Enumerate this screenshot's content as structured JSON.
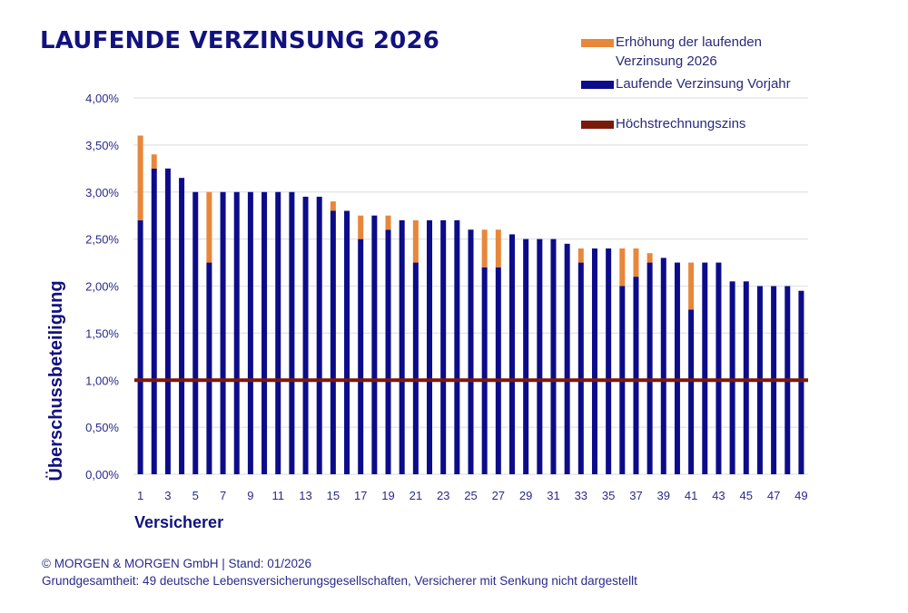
{
  "chart_data": {
    "type": "bar",
    "stacked": true,
    "title": "LAUFENDE VERZINSUNG 2026",
    "xlabel": "Versicherer",
    "ylabel": "Überschussbeteiligung",
    "ylim": [
      0,
      4.0
    ],
    "yticks": [
      "0,00%",
      "0,50%",
      "1,00%",
      "1,50%",
      "2,00%",
      "2,50%",
      "3,00%",
      "3,50%",
      "4,00%"
    ],
    "ytick_values": [
      0,
      0.5,
      1.0,
      1.5,
      2.0,
      2.5,
      3.0,
      3.5,
      4.0
    ],
    "xtick_labels": [
      "1",
      "3",
      "5",
      "7",
      "9",
      "11",
      "13",
      "15",
      "17",
      "19",
      "21",
      "23",
      "25",
      "27",
      "29",
      "31",
      "33",
      "35",
      "37",
      "39",
      "41",
      "43",
      "45",
      "47",
      "49"
    ],
    "grid": true,
    "legend_position": "top-right",
    "categories": [
      "1",
      "2",
      "3",
      "4",
      "5",
      "6",
      "7",
      "8",
      "9",
      "10",
      "11",
      "12",
      "13",
      "14",
      "15",
      "16",
      "17",
      "18",
      "19",
      "20",
      "21",
      "22",
      "23",
      "24",
      "25",
      "26",
      "27",
      "28",
      "29",
      "30",
      "31",
      "32",
      "33",
      "34",
      "35",
      "36",
      "37",
      "38",
      "39",
      "40",
      "41",
      "42",
      "43",
      "44",
      "45",
      "46",
      "47",
      "48",
      "49"
    ],
    "series": [
      {
        "name": "Laufende Verzinsung Vorjahr",
        "color": "#0c0c8a",
        "values": [
          2.7,
          3.25,
          3.25,
          3.15,
          3.0,
          2.25,
          3.0,
          3.0,
          3.0,
          3.0,
          3.0,
          3.0,
          2.95,
          2.95,
          2.8,
          2.8,
          2.5,
          2.75,
          2.6,
          2.7,
          2.25,
          2.7,
          2.7,
          2.7,
          2.6,
          2.2,
          2.2,
          2.55,
          2.5,
          2.5,
          2.5,
          2.45,
          2.25,
          2.4,
          2.4,
          2.0,
          2.1,
          2.25,
          2.3,
          2.25,
          1.75,
          2.25,
          2.25,
          2.05,
          2.05,
          2.0,
          2.0,
          2.0,
          1.95
        ]
      },
      {
        "name": "Erhöhung der laufenden Verzinsung 2026",
        "color": "#e8873a",
        "values": [
          0.9,
          0.15,
          0,
          0,
          0,
          0.75,
          0,
          0,
          0,
          0,
          0,
          0,
          0,
          0,
          0.1,
          0,
          0.25,
          0,
          0.15,
          0,
          0.45,
          0,
          0,
          0,
          0,
          0.4,
          0.4,
          0,
          0,
          0,
          0,
          0,
          0.15,
          0,
          0,
          0.4,
          0.3,
          0.1,
          0,
          0,
          0.5,
          0,
          0,
          0,
          0,
          0,
          0,
          0,
          0
        ]
      }
    ],
    "reference_line": {
      "name": "Höchstrechnungszins",
      "value": 1.0,
      "color": "#7a1a0c"
    }
  },
  "legend": {
    "items": [
      {
        "label_line1": "Erhöhung der laufenden",
        "label_line2": "Verzinsung 2026",
        "color": "#e8873a"
      },
      {
        "label_line1": "Laufende Verzinsung Vorjahr",
        "label_line2": "",
        "color": "#0c0c8a"
      },
      {
        "label_line1": "Höchstrechnungszins",
        "label_line2": "",
        "color": "#7a1a0c"
      }
    ]
  },
  "footer": {
    "line1": "© MORGEN & MORGEN GmbH | Stand: 01/2026",
    "line2": "Grundgesamtheit: 49 deutsche Lebensversicherungsgesellschaften, Versicherer mit Senkung nicht dargestellt"
  }
}
